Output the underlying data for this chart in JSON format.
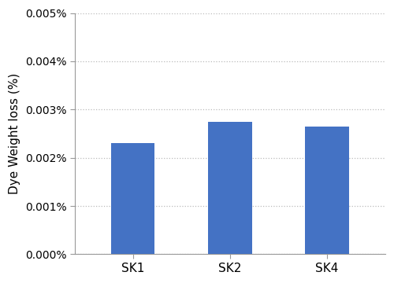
{
  "categories": [
    "SK1",
    "SK2",
    "SK4"
  ],
  "values": [
    2.3e-06,
    2.75e-06,
    2.65e-06
  ],
  "bar_color": "#4472C4",
  "ylabel": "Dye Weight loss (%)",
  "ylim": [
    0,
    5e-06
  ],
  "yticks": [
    0.0,
    1e-06,
    2e-06,
    3e-06,
    4e-06,
    5e-06
  ],
  "ytick_labels": [
    "0.000%",
    "0.001%",
    "0.002%",
    "0.003%",
    "0.004%",
    "0.005%"
  ],
  "bar_width": 0.45,
  "grid_color": "#bbbbbb",
  "background_color": "#ffffff",
  "ylabel_fontsize": 11,
  "tick_fontsize": 10,
  "xlabel_fontsize": 11
}
